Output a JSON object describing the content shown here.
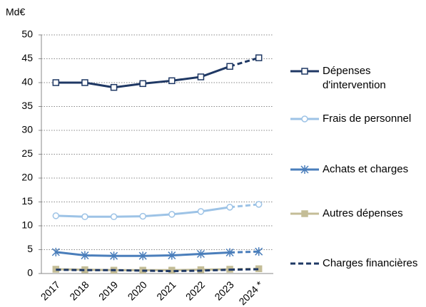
{
  "chart_data": {
    "type": "line",
    "ylabel": "Md€",
    "categories": [
      "2017",
      "2018",
      "2019",
      "2020",
      "2021",
      "2022",
      "2023",
      "2024 *"
    ],
    "ylim": [
      0,
      50
    ],
    "yticks": [
      0,
      5,
      10,
      15,
      20,
      25,
      30,
      35,
      40,
      45,
      50
    ],
    "grid": true,
    "legend": "right",
    "last_segment_dashed": true,
    "series": [
      {
        "name": "Dépenses d'intervention",
        "color": "#1f3864",
        "marker": "square-open",
        "values": [
          40,
          40,
          39,
          39.8,
          40.4,
          41.2,
          43.4,
          45.2
        ]
      },
      {
        "name": "Frais de personnel",
        "color": "#9dc3e6",
        "marker": "circle-open",
        "values": [
          12.1,
          11.9,
          11.9,
          12.0,
          12.4,
          13.0,
          13.9,
          14.5
        ]
      },
      {
        "name": "Achats et charges",
        "color": "#4a7ebb",
        "marker": "star",
        "values": [
          4.5,
          3.8,
          3.7,
          3.7,
          3.8,
          4.1,
          4.4,
          4.6
        ]
      },
      {
        "name": "Autres dépenses",
        "color": "#c4bd97",
        "marker": "square",
        "values": [
          0.9,
          0.8,
          0.7,
          0.7,
          0.7,
          0.8,
          0.9,
          1.0
        ]
      },
      {
        "name": "Charges financières",
        "color": "#1f3864",
        "marker": "none",
        "dash": true,
        "values": [
          0.8,
          0.7,
          0.7,
          0.6,
          0.5,
          0.6,
          0.8,
          0.9
        ]
      }
    ]
  }
}
